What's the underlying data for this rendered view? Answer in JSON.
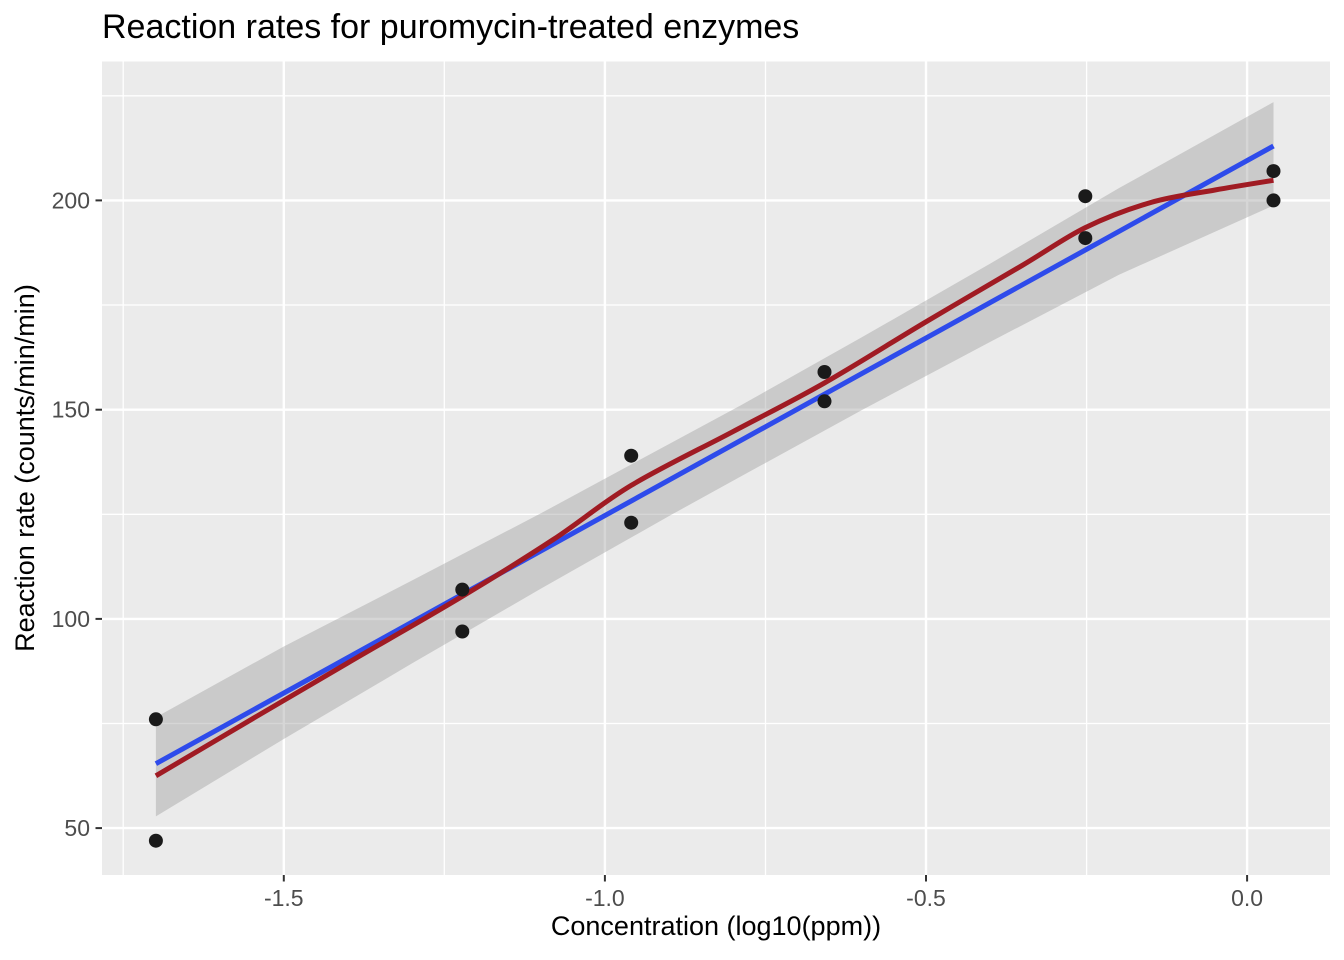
{
  "chart_data": {
    "type": "scatter",
    "title": "Reaction rates for puromycin-treated enzymes",
    "xlabel": "Concentration (log10(ppm))",
    "ylabel": "Reaction rate (counts/min/min)",
    "xlim": [
      -1.783,
      0.129
    ],
    "ylim": [
      38.8,
      233.2
    ],
    "grid": true,
    "legend_position": "none",
    "x_ticks": [
      {
        "value": -1.5,
        "label": "-1.5"
      },
      {
        "value": -1.0,
        "label": "-1.0"
      },
      {
        "value": -0.5,
        "label": "-0.5"
      },
      {
        "value": 0.0,
        "label": "0.0"
      }
    ],
    "y_ticks": [
      {
        "value": 50,
        "label": "50"
      },
      {
        "value": 100,
        "label": "100"
      },
      {
        "value": 150,
        "label": "150"
      },
      {
        "value": 200,
        "label": "200"
      }
    ],
    "x_minor": [
      -1.75,
      -1.25,
      -0.75,
      -0.25
    ],
    "y_minor": [
      75,
      125,
      175,
      225
    ],
    "points": [
      [
        -1.699,
        76
      ],
      [
        -1.699,
        47
      ],
      [
        -1.222,
        97
      ],
      [
        -1.222,
        107
      ],
      [
        -0.959,
        123
      ],
      [
        -0.959,
        139
      ],
      [
        -0.658,
        159
      ],
      [
        -0.658,
        152
      ],
      [
        -0.252,
        191
      ],
      [
        -0.252,
        201
      ],
      [
        0.041,
        207
      ],
      [
        0.041,
        200
      ]
    ],
    "ribbon": {
      "x": [
        -1.699,
        -1.5,
        -1.3,
        -1.1,
        -0.9,
        -0.79,
        -0.6,
        -0.4,
        -0.2,
        0.041
      ],
      "upper": [
        76.5,
        93.4,
        109.2,
        125.2,
        141.8,
        150.9,
        167.3,
        184.9,
        202.9,
        223.5
      ],
      "lower": [
        52.8,
        71.3,
        89.4,
        107.2,
        124.6,
        133.9,
        149.9,
        166.2,
        182.2,
        198.8
      ]
    },
    "series": [
      {
        "name": "linear-fit",
        "kind": "line",
        "points": [
          [
            -1.699,
            65.4
          ],
          [
            0.041,
            213.0
          ]
        ]
      },
      {
        "name": "loess-fit",
        "kind": "curve",
        "points": [
          [
            -1.699,
            62.5
          ],
          [
            -1.55,
            76.0
          ],
          [
            -1.4,
            89.5
          ],
          [
            -1.222,
            105.4
          ],
          [
            -1.08,
            119.0
          ],
          [
            -0.959,
            131.9
          ],
          [
            -0.8,
            144.8
          ],
          [
            -0.658,
            156.4
          ],
          [
            -0.5,
            171.0
          ],
          [
            -0.35,
            184.5
          ],
          [
            -0.252,
            193.5
          ],
          [
            -0.15,
            199.5
          ],
          [
            -0.05,
            202.5
          ],
          [
            0.041,
            204.8
          ]
        ]
      }
    ],
    "colors": {
      "panel_bg": "#EBEBEB",
      "grid": "#FFFFFF",
      "ribbon": "rgba(153,153,153,0.40)",
      "linear_fit": "#2E4BEB",
      "loess_fit": "#A01B23",
      "point": "#1A1A1A",
      "tick_text": "#4D4D4D",
      "tick_mark": "#333333"
    }
  }
}
